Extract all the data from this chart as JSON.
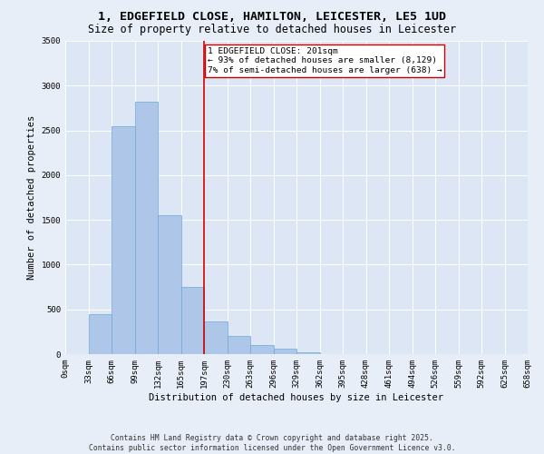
{
  "title_line1": "1, EDGEFIELD CLOSE, HAMILTON, LEICESTER, LE5 1UD",
  "title_line2": "Size of property relative to detached houses in Leicester",
  "xlabel": "Distribution of detached houses by size in Leicester",
  "ylabel": "Number of detached properties",
  "bar_values": [
    0,
    450,
    2550,
    2820,
    1550,
    750,
    370,
    200,
    100,
    65,
    20,
    0,
    0,
    0,
    0,
    0,
    0,
    0,
    0,
    0
  ],
  "bar_labels": [
    "0sqm",
    "33sqm",
    "66sqm",
    "99sqm",
    "132sqm",
    "165sqm",
    "197sqm",
    "230sqm",
    "263sqm",
    "296sqm",
    "329sqm",
    "362sqm",
    "395sqm",
    "428sqm",
    "461sqm",
    "494sqm",
    "526sqm",
    "559sqm",
    "592sqm",
    "625sqm",
    "658sqm"
  ],
  "bar_color": "#aec6e8",
  "bar_edge_color": "#6aaad4",
  "vline_color": "#cc0000",
  "annotation_text": "1 EDGEFIELD CLOSE: 201sqm\n← 93% of detached houses are smaller (8,129)\n7% of semi-detached houses are larger (638) →",
  "annotation_box_color": "#ffffff",
  "annotation_box_edge": "#cc0000",
  "ylim": [
    0,
    3500
  ],
  "yticks": [
    0,
    500,
    1000,
    1500,
    2000,
    2500,
    3000,
    3500
  ],
  "bg_color": "#e8eef7",
  "plot_bg_color": "#dce6f5",
  "footer_line1": "Contains HM Land Registry data © Crown copyright and database right 2025.",
  "footer_line2": "Contains public sector information licensed under the Open Government Licence v3.0.",
  "title_fontsize": 9.5,
  "subtitle_fontsize": 8.5,
  "tick_fontsize": 6.5,
  "label_fontsize": 7.5,
  "annotation_fontsize": 6.8,
  "footer_fontsize": 5.8
}
